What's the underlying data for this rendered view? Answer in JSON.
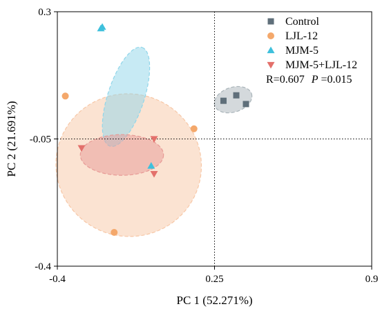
{
  "chart_data": {
    "type": "scatter",
    "xlabel": "PC 1 (52.271%)",
    "ylabel": "PC 2 (21.691%)",
    "xlim": [
      -0.4,
      0.9
    ],
    "ylim": [
      -0.4,
      0.3
    ],
    "xticks": [
      "-0.4",
      "0.25",
      "0.9"
    ],
    "yticks": [
      "0.3",
      "-0.05",
      "-0.4"
    ],
    "xtick_values": [
      -0.4,
      0.25,
      0.9
    ],
    "ytick_values": [
      0.3,
      -0.05,
      -0.4
    ],
    "reference_lines": {
      "x": 0.25,
      "y": -0.05,
      "style": "dotted"
    },
    "grid": false,
    "legend_position": "top-right",
    "annotation": {
      "r_text": "R=0.607",
      "p_label": "P",
      "p_text": "=0.015"
    },
    "series": [
      {
        "name": "Control",
        "marker": "square",
        "color": "#5f6f7a",
        "ellipse_fill": "#a9b4b9",
        "points": [
          [
            0.34,
            0.07
          ],
          [
            0.287,
            0.055
          ],
          [
            0.38,
            0.046
          ]
        ],
        "ellipse": {
          "cx": 0.327,
          "cy": 0.058,
          "rx": 0.08,
          "ry": 0.034,
          "angle_deg": 18
        }
      },
      {
        "name": "LJL-12",
        "marker": "circle",
        "color": "#f4a86b",
        "ellipse_fill": "#f7c7a6",
        "points": [
          [
            -0.367,
            0.068
          ],
          [
            0.165,
            -0.022
          ],
          [
            -0.165,
            -0.307
          ]
        ],
        "ellipse": {
          "cx": -0.105,
          "cy": -0.122,
          "rx": 0.295,
          "ry": 0.2,
          "angle_deg": 72
        }
      },
      {
        "name": "MJM-5",
        "marker": "triangle-up",
        "color": "#3ec0dc",
        "ellipse_fill": "#8fd6ea",
        "points": [
          [
            -0.22,
            0.254
          ],
          [
            -0.214,
            0.258
          ],
          [
            -0.012,
            -0.124
          ]
        ],
        "ellipse": {
          "cx": -0.116,
          "cy": 0.066,
          "rx": 0.215,
          "ry": 0.05,
          "angle_deg": 72
        }
      },
      {
        "name": "MJM-5+LJL-12",
        "marker": "triangle-down",
        "color": "#e3706b",
        "ellipse_fill": "#e79a96",
        "points": [
          [
            -0.3,
            -0.075
          ],
          [
            0.0,
            -0.05
          ],
          [
            0.0,
            -0.146
          ]
        ],
        "ellipse": {
          "cx": -0.133,
          "cy": -0.094,
          "rx": 0.172,
          "ry": 0.056,
          "angle_deg": 0
        }
      }
    ]
  }
}
